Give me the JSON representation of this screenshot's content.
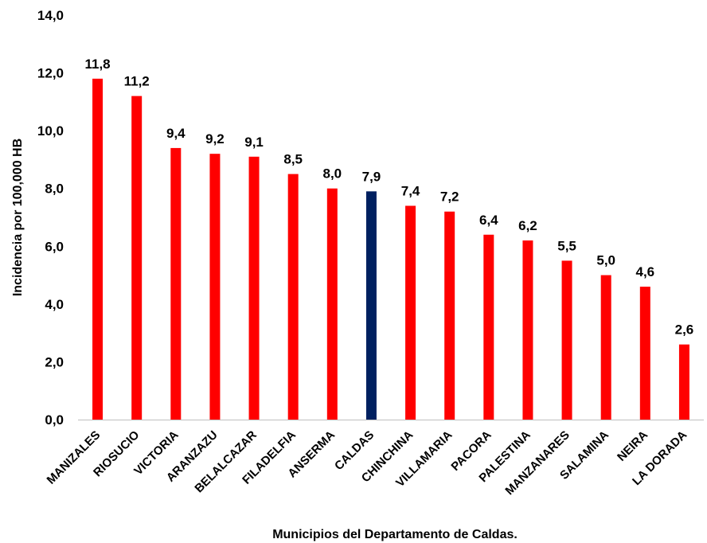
{
  "chart_data": {
    "type": "bar",
    "title": "",
    "xlabel": "Municipios del Departamento de Caldas.",
    "ylabel": "Incidencia por 100,000 HB",
    "ylim": [
      0,
      14
    ],
    "yticks": [
      "0,0",
      "2,0",
      "4,0",
      "6,0",
      "8,0",
      "10,0",
      "12,0",
      "14,0"
    ],
    "grid": false,
    "legend": "none",
    "categories": [
      "MANIZALES",
      "RIOSUCIO",
      "VICTORIA",
      "ARANZAZU",
      "BELALCAZAR",
      "FILADELFIA",
      "ANSERMA",
      "CALDAS",
      "CHINCHINA",
      "VILLAMARIA",
      "PACORA",
      "PALESTINA",
      "MANZANARES",
      "SALAMINA",
      "NEIRA",
      "LA DORADA"
    ],
    "values": [
      11.8,
      11.2,
      9.4,
      9.2,
      9.1,
      8.5,
      8.0,
      7.9,
      7.4,
      7.2,
      6.4,
      6.2,
      5.5,
      5.0,
      4.6,
      2.6
    ],
    "value_labels": [
      "11,8",
      "11,2",
      "9,4",
      "9,2",
      "9,1",
      "8,5",
      "8,0",
      "7,9",
      "7,4",
      "7,2",
      "6,4",
      "6,2",
      "5,5",
      "5,0",
      "4,6",
      "2,6"
    ],
    "bar_color": "#ff0000",
    "highlight_category": "CALDAS",
    "highlight_color": "#002060"
  }
}
